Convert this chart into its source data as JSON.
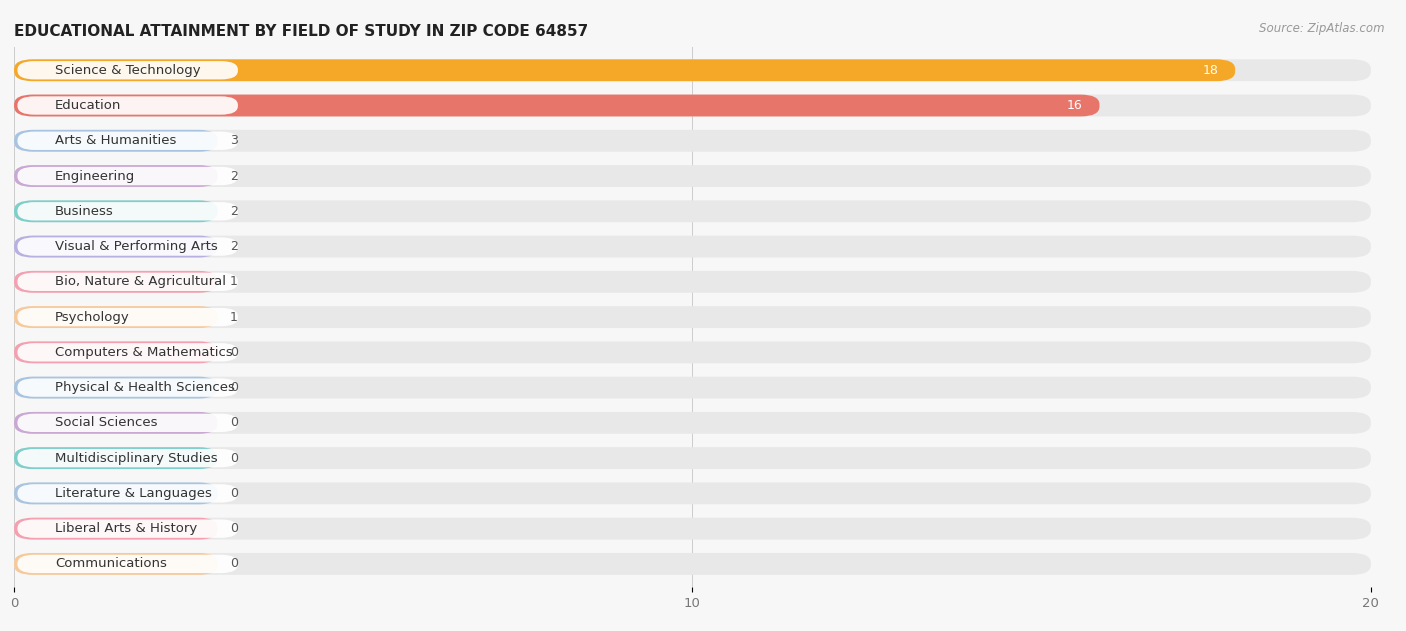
{
  "title": "EDUCATIONAL ATTAINMENT BY FIELD OF STUDY IN ZIP CODE 64857",
  "source": "Source: ZipAtlas.com",
  "categories": [
    "Science & Technology",
    "Education",
    "Arts & Humanities",
    "Engineering",
    "Business",
    "Visual & Performing Arts",
    "Bio, Nature & Agricultural",
    "Psychology",
    "Computers & Mathematics",
    "Physical & Health Sciences",
    "Social Sciences",
    "Multidisciplinary Studies",
    "Literature & Languages",
    "Liberal Arts & History",
    "Communications"
  ],
  "values": [
    18,
    16,
    3,
    2,
    2,
    2,
    1,
    1,
    0,
    0,
    0,
    0,
    0,
    0,
    0
  ],
  "colors": [
    "#F5A828",
    "#E8756A",
    "#A8C4E0",
    "#C9A8D4",
    "#7ECECA",
    "#B8B0E0",
    "#F4A0B0",
    "#F7C99A",
    "#F4A0B0",
    "#A8C4E0",
    "#C9A8D4",
    "#7ECECA",
    "#A8C4E0",
    "#F4A0B0",
    "#F7C99A"
  ],
  "xlim": [
    0,
    20
  ],
  "xticks": [
    0,
    10,
    20
  ],
  "background_color": "#f7f7f7",
  "bar_bg_color": "#e8e8e8",
  "title_fontsize": 11,
  "label_fontsize": 9.5,
  "value_fontsize": 9
}
